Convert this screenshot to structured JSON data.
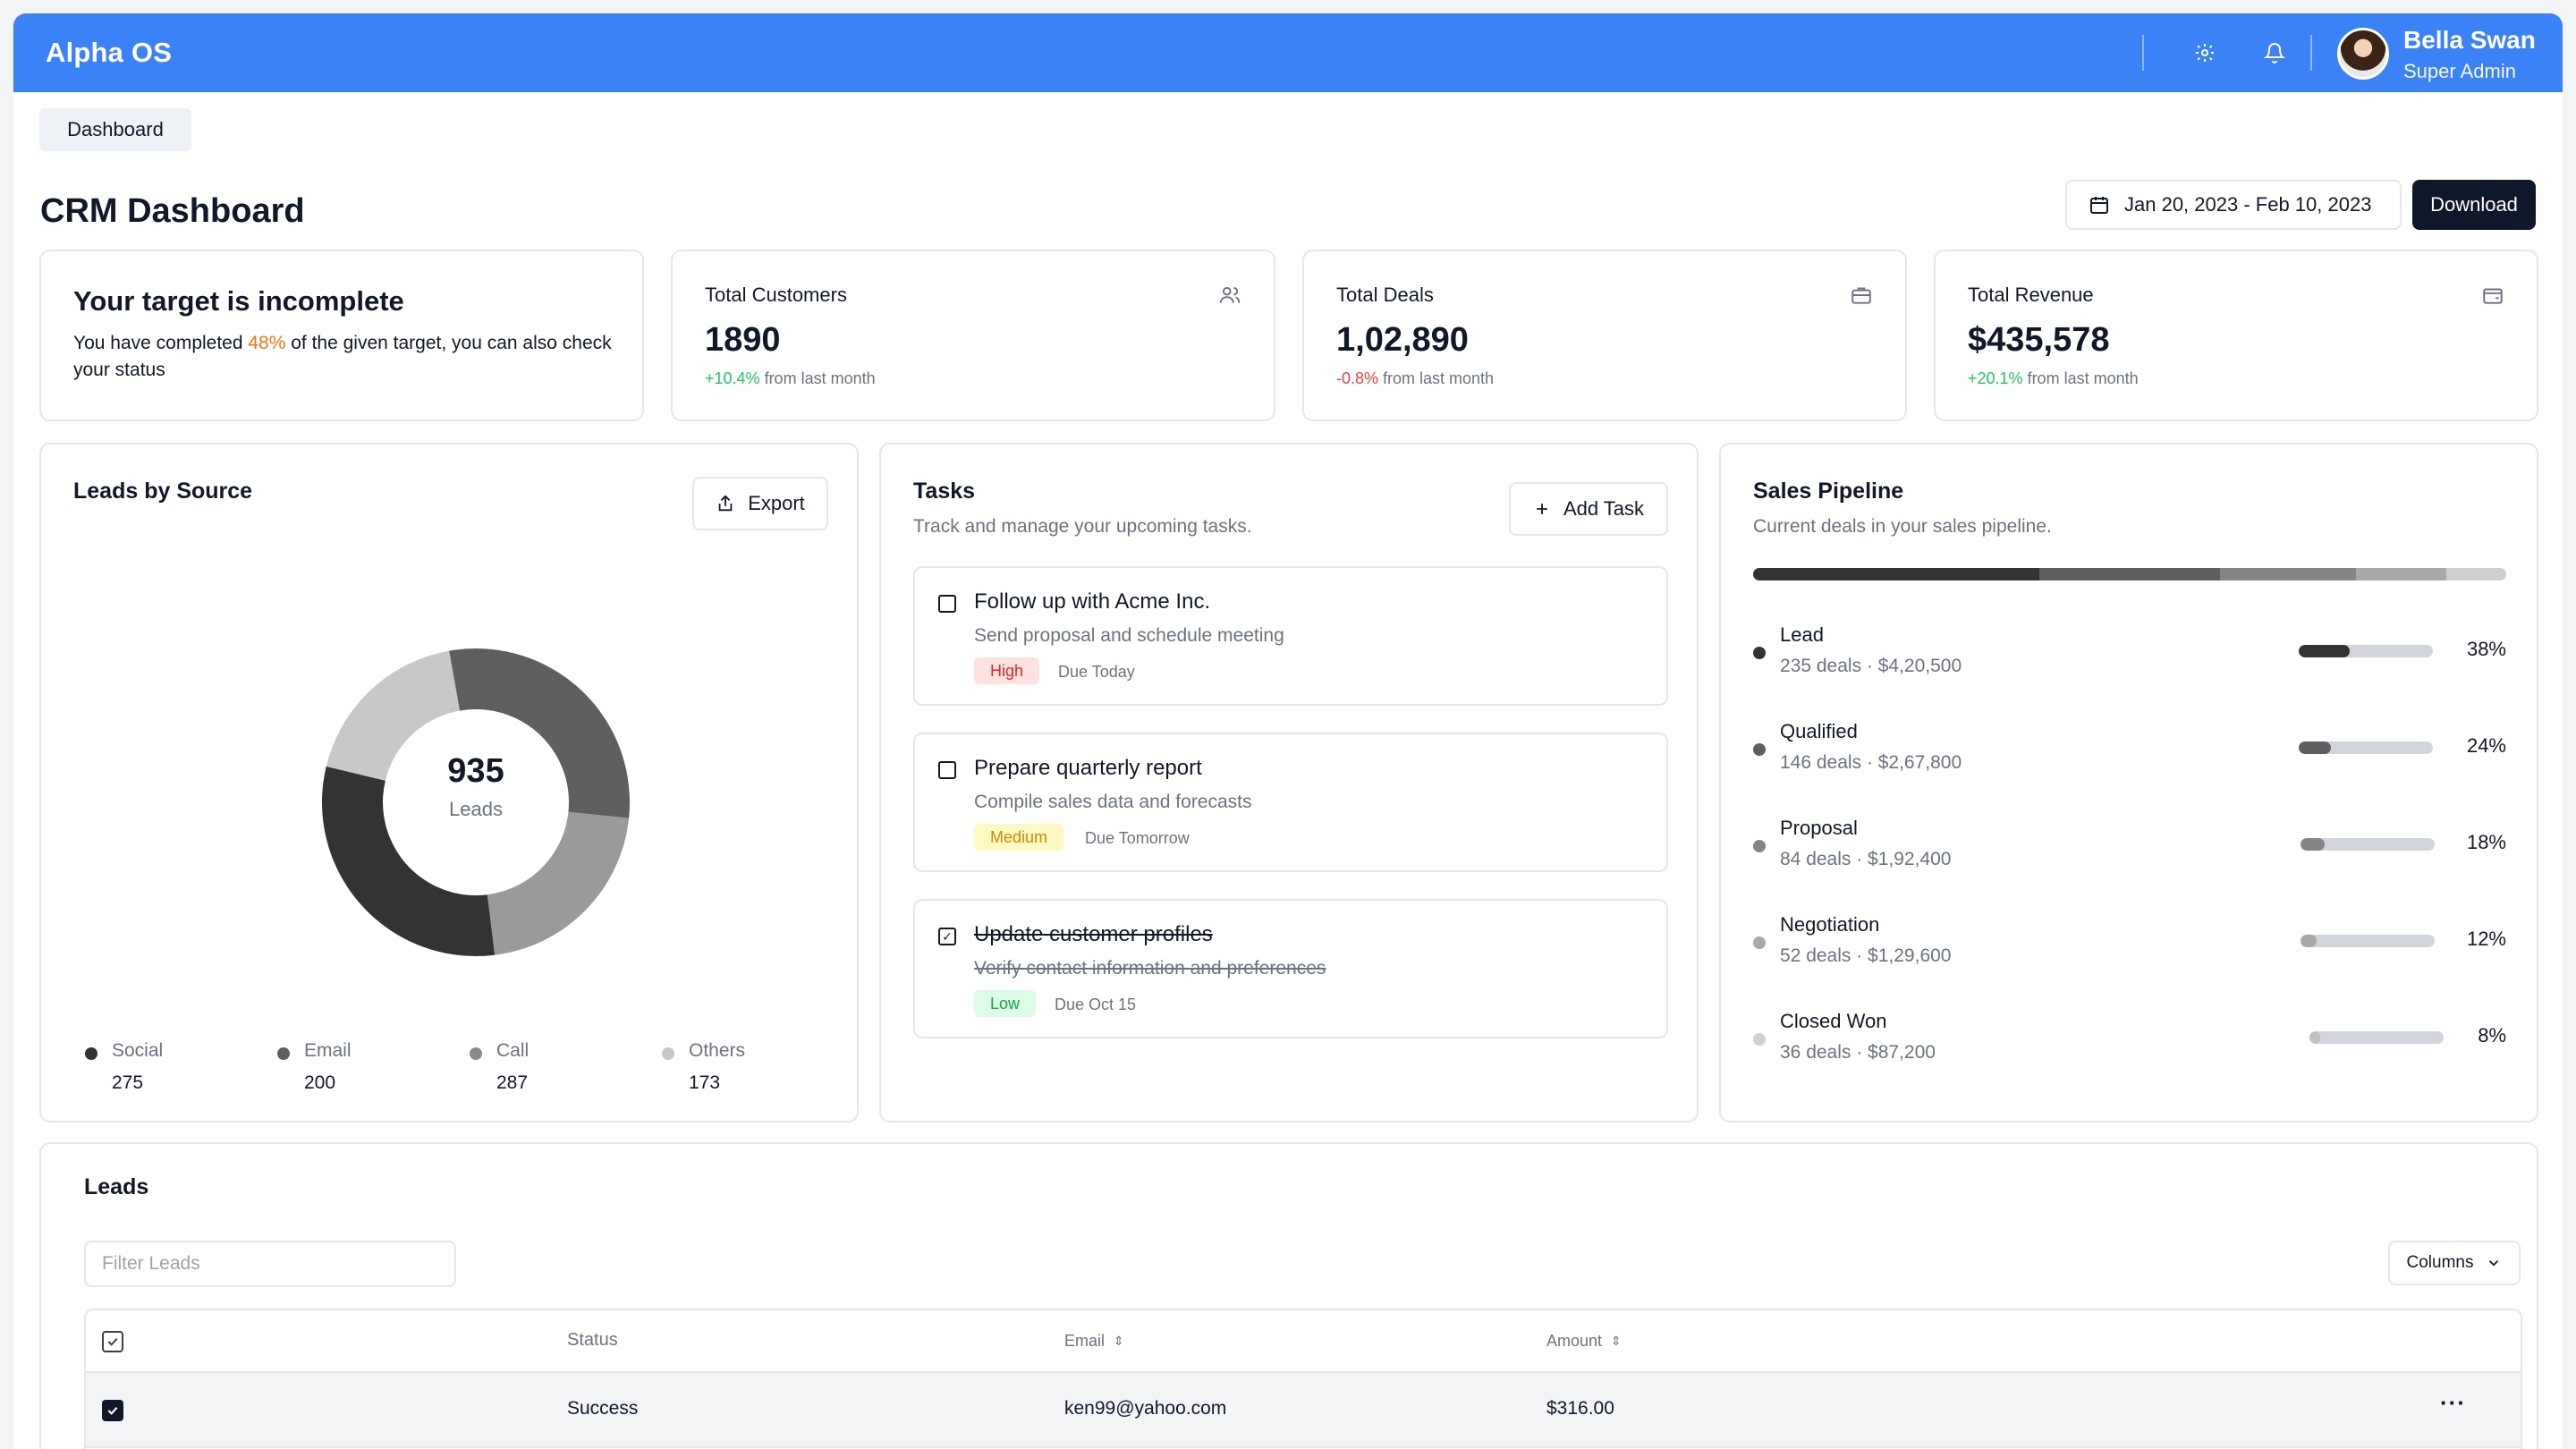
{
  "header": {
    "brand": "Alpha OS",
    "user": {
      "name": "Bella Swan",
      "role": "Super Admin"
    },
    "icons": [
      "gear-icon",
      "bell-icon"
    ]
  },
  "breadcrumb": "Dashboard",
  "page": {
    "title": "CRM Dashboard",
    "date_range": "Jan 20, 2023 - Feb 10, 2023",
    "download_label": "Download"
  },
  "target": {
    "title": "Your target is incomplete",
    "text_before": "You have completed ",
    "percent": "48%",
    "text_after": " of the given target, you can also check your status"
  },
  "stats": [
    {
      "label": "Total Customers",
      "value": "1890",
      "change": "+10.4%",
      "change_suffix": " from last month",
      "trend": "up",
      "icon": "users-icon"
    },
    {
      "label": "Total Deals",
      "value": "1,02,890",
      "change": "-0.8%",
      "change_suffix": " from last month",
      "trend": "down",
      "icon": "briefcase-icon"
    },
    {
      "label": "Total Revenue",
      "value": "$435,578",
      "change": "+20.1%",
      "change_suffix": " from last month",
      "trend": "up",
      "icon": "wallet-icon"
    }
  ],
  "leads_by_source": {
    "title": "Leads by Source",
    "export_label": "Export",
    "total": "935",
    "total_label": "Leads",
    "sources": [
      {
        "name": "Social",
        "value": 275,
        "color": "#5f5f5f"
      },
      {
        "name": "Email",
        "value": 200,
        "color": "#9a9a9a"
      },
      {
        "name": "Call",
        "value": 287,
        "color": "#333333"
      },
      {
        "name": "Others",
        "value": 173,
        "color": "#c8c8c8"
      }
    ],
    "legend_colors": [
      "#333333",
      "#5f5f5f",
      "#8a8a8a",
      "#c8c8c8"
    ]
  },
  "tasks": {
    "title": "Tasks",
    "subtitle": "Track and manage your upcoming tasks.",
    "add_label": "Add Task",
    "items": [
      {
        "title": "Follow up with Acme Inc.",
        "desc": "Send proposal and schedule meeting",
        "priority": "High",
        "due": "Due Today",
        "done": false
      },
      {
        "title": "Prepare quarterly report",
        "desc": "Compile sales data and forecasts",
        "priority": "Medium",
        "due": "Due Tomorrow",
        "done": false
      },
      {
        "title": "Update customer profiles",
        "desc": "Verify contact information and preferences",
        "priority": "Low",
        "due": "Due Oct 15",
        "done": true
      }
    ]
  },
  "pipeline": {
    "title": "Sales Pipeline",
    "subtitle": "Current deals in your sales pipeline.",
    "stages": [
      {
        "name": "Lead",
        "meta": "235 deals · $4,20,500",
        "percent": 38,
        "pct_label": "38%",
        "color": "#333333"
      },
      {
        "name": "Qualified",
        "meta": "146 deals · $2,67,800",
        "percent": 24,
        "pct_label": "24%",
        "color": "#5f5f5f"
      },
      {
        "name": "Proposal",
        "meta": "84 deals · $1,92,400",
        "percent": 18,
        "pct_label": "18%",
        "color": "#858585"
      },
      {
        "name": "Negotiation",
        "meta": "52 deals · $1,29,600",
        "percent": 12,
        "pct_label": "12%",
        "color": "#a8a8a8"
      },
      {
        "name": "Closed Won",
        "meta": "36 deals · $87,200",
        "percent": 8,
        "pct_label": "8%",
        "color": "#cfcfcf"
      }
    ]
  },
  "leads_table": {
    "title": "Leads",
    "filter_placeholder": "Filter Leads",
    "columns_label": "Columns",
    "headers": {
      "status": "Status",
      "email": "Email",
      "amount": "Amount"
    },
    "rows": [
      {
        "status": "Success",
        "email": "ken99@yahoo.com",
        "amount": "$316.00",
        "selected": true
      }
    ]
  }
}
